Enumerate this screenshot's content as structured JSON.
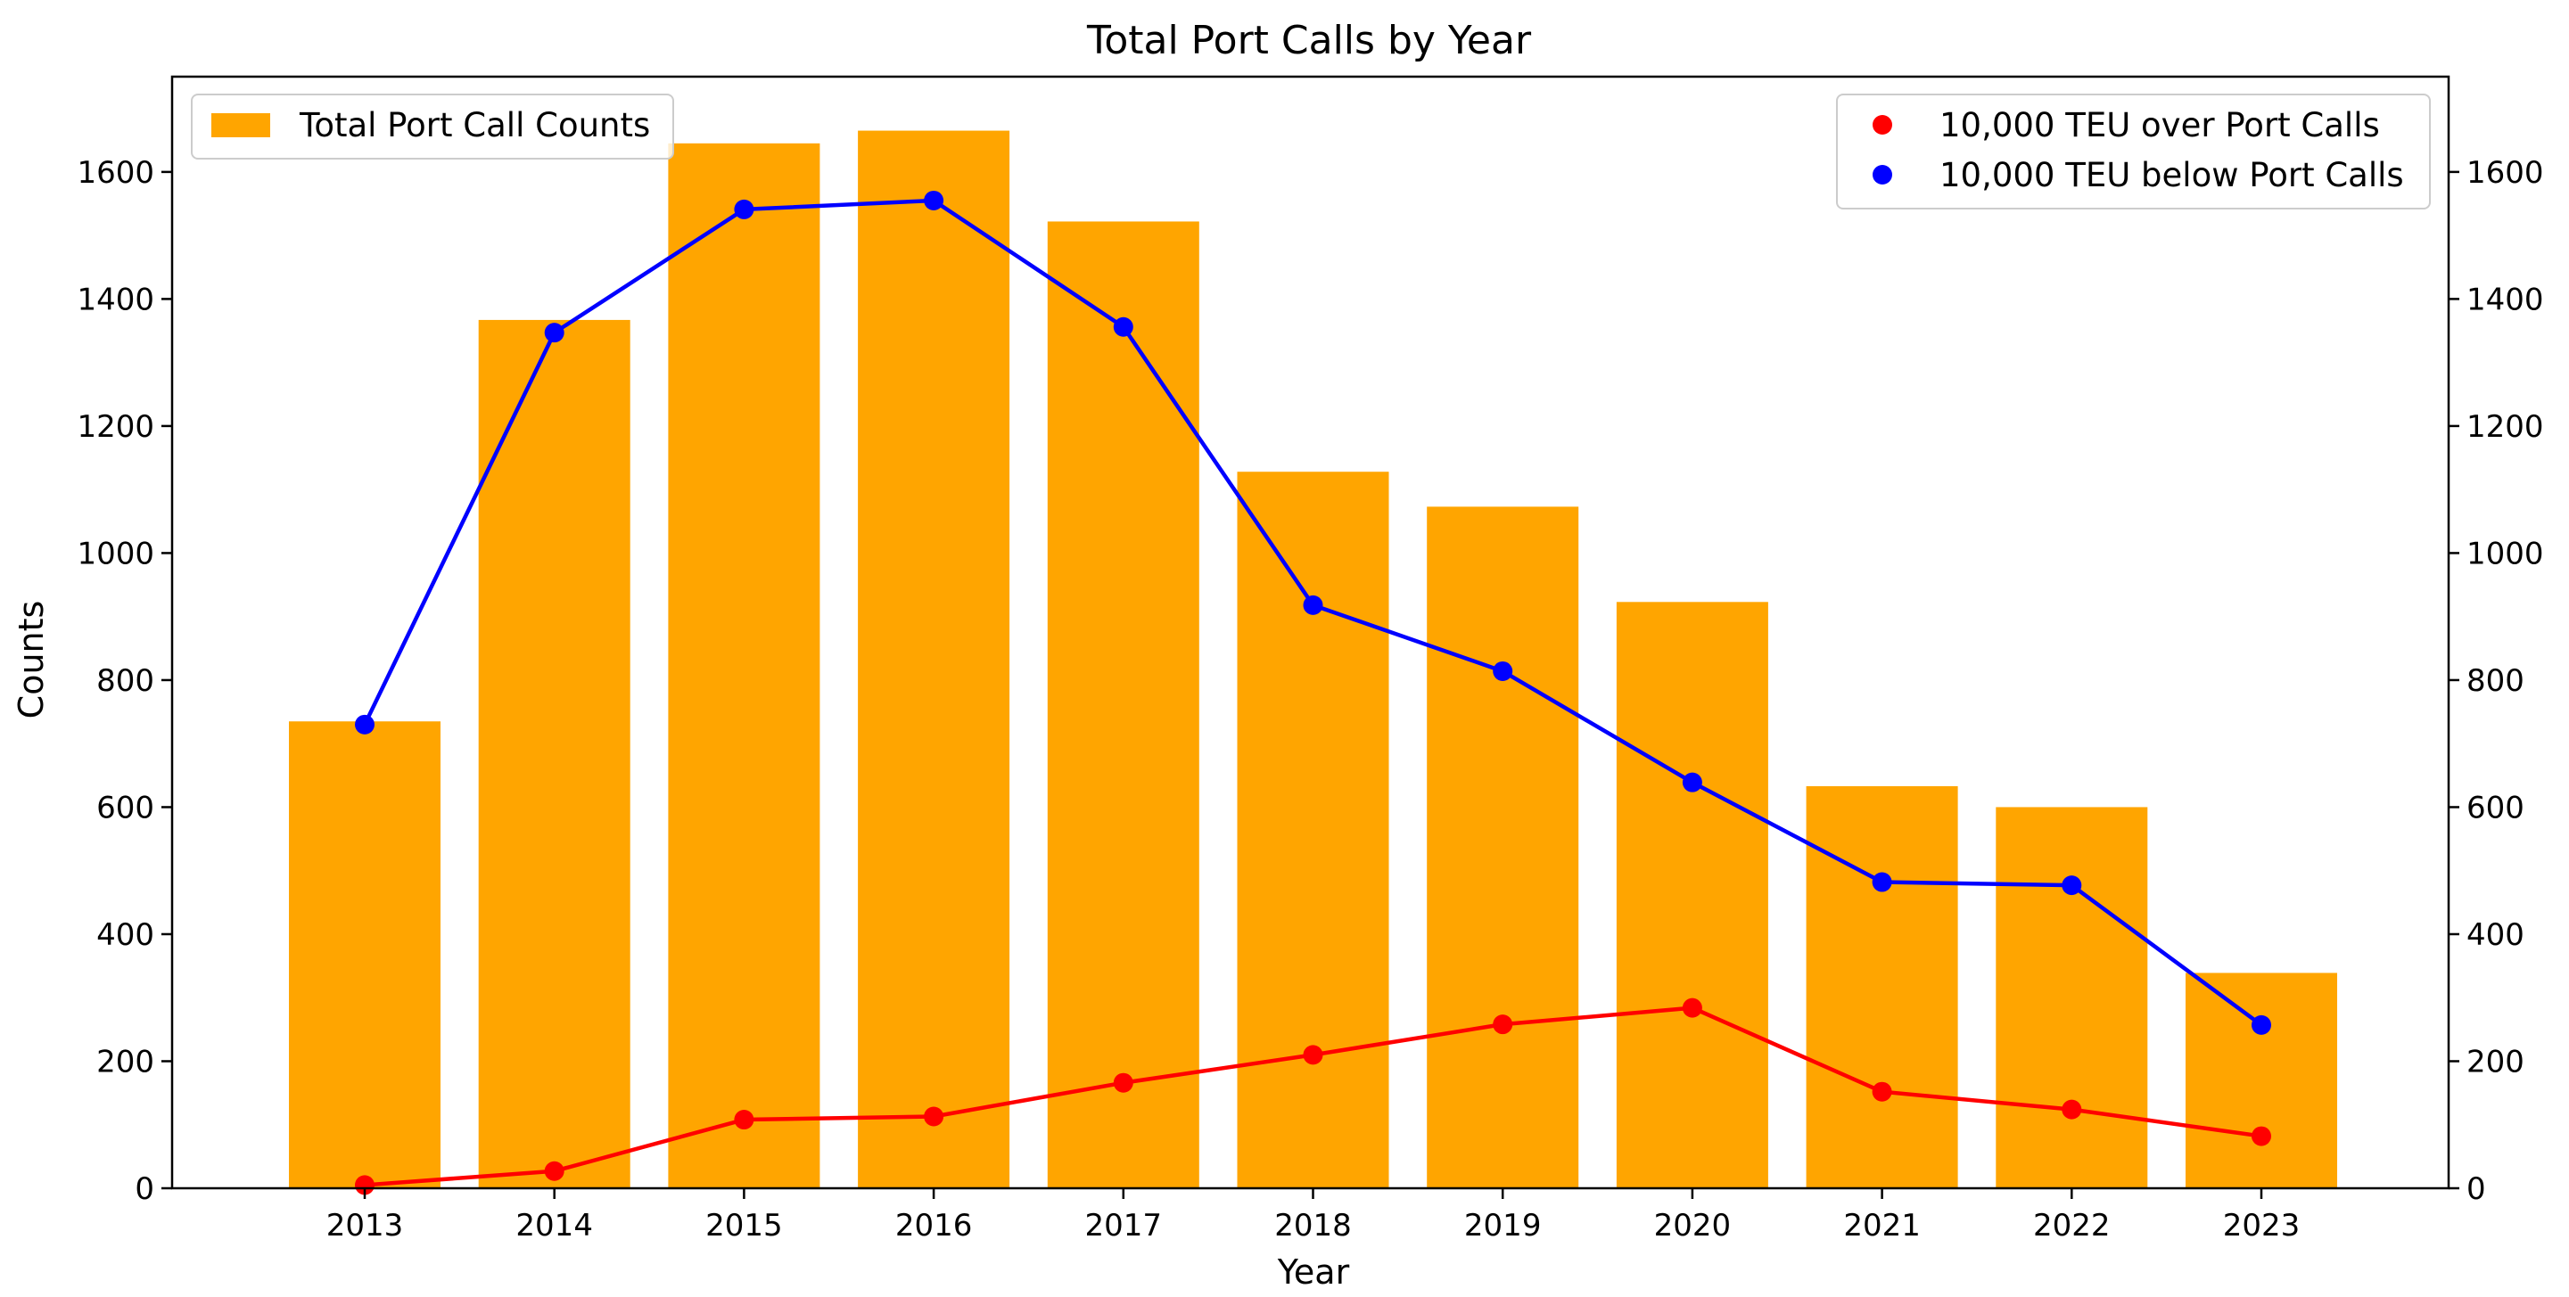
{
  "chart_data": {
    "type": "bar",
    "title": "Total Port Calls by Year",
    "xlabel": "Year",
    "ylabel": "Counts",
    "categories": [
      "2013",
      "2014",
      "2015",
      "2016",
      "2017",
      "2018",
      "2019",
      "2020",
      "2021",
      "2022",
      "2023"
    ],
    "ylim": [
      0,
      1750
    ],
    "y2lim": [
      0,
      1750
    ],
    "yticks": [
      "0",
      "200",
      "400",
      "600",
      "800",
      "1000",
      "1200",
      "1400",
      "1600"
    ],
    "grid": false,
    "series": [
      {
        "name": "Total Port Call Counts",
        "type": "bar",
        "axis": "left",
        "color": "#ffa500",
        "values": [
          735,
          1367,
          1645,
          1665,
          1522,
          1128,
          1073,
          923,
          633,
          600,
          339
        ],
        "legend_position": "upper left"
      },
      {
        "name": "10,000 TEU over Port Calls",
        "type": "line",
        "axis": "right",
        "color": "#ff0000",
        "values": [
          5,
          27,
          108,
          113,
          166,
          210,
          258,
          284,
          152,
          124,
          82
        ],
        "legend_position": "upper right"
      },
      {
        "name": "10,000 TEU below Port Calls",
        "type": "line",
        "axis": "right",
        "color": "#0000ff",
        "values": [
          730,
          1347,
          1541,
          1555,
          1356,
          918,
          814,
          639,
          482,
          477,
          257
        ],
        "legend_position": "upper right"
      }
    ]
  }
}
